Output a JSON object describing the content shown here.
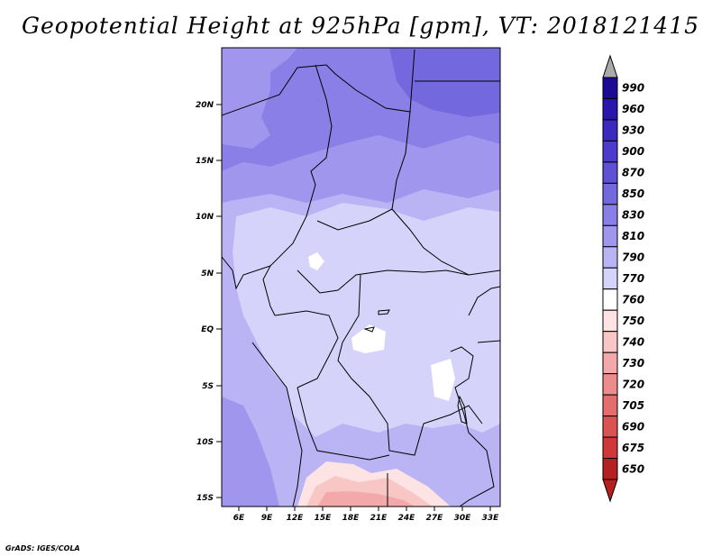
{
  "title": "Geopotential Height at 925hPa [gpm], VT: 2018121415",
  "credit": "GrADS: IGES/COLA",
  "x_ticks": [
    "6E",
    "9E",
    "12E",
    "15E",
    "18E",
    "21E",
    "24E",
    "27E",
    "30E",
    "33E"
  ],
  "y_ticks": [
    "20N",
    "15N",
    "10N",
    "5N",
    "EQ",
    "5S",
    "10S",
    "15S"
  ],
  "colorbar": {
    "levels": [
      "990",
      "960",
      "930",
      "900",
      "870",
      "850",
      "830",
      "810",
      "790",
      "770",
      "760",
      "750",
      "740",
      "730",
      "720",
      "705",
      "690",
      "675",
      "650"
    ],
    "colors": [
      "#1c0a96",
      "#2a15ad",
      "#3b28bf",
      "#4d3ccc",
      "#5f50d6",
      "#7468de",
      "#8a7fe6",
      "#a196ee",
      "#bab3f4",
      "#d6d3fa",
      "#ffffff",
      "#fde3e3",
      "#f9c6c6",
      "#f3a9a9",
      "#ec8c8c",
      "#e46e6e",
      "#db5252",
      "#cf3838",
      "#b52020"
    ]
  },
  "map": {
    "regions": [
      {
        "name": "north-band",
        "color": "#8a7fe6"
      },
      {
        "name": "mid-band",
        "color": "#a196ee"
      },
      {
        "name": "lower-band",
        "color": "#bab3f4"
      },
      {
        "name": "interior-band",
        "color": "#d6d3fa"
      },
      {
        "name": "high-northeast",
        "color": "#7468de"
      },
      {
        "name": "low-southern-pink",
        "color": "#f9c6c6"
      },
      {
        "name": "low-southern-core",
        "color": "#ec8c8c"
      }
    ]
  }
}
